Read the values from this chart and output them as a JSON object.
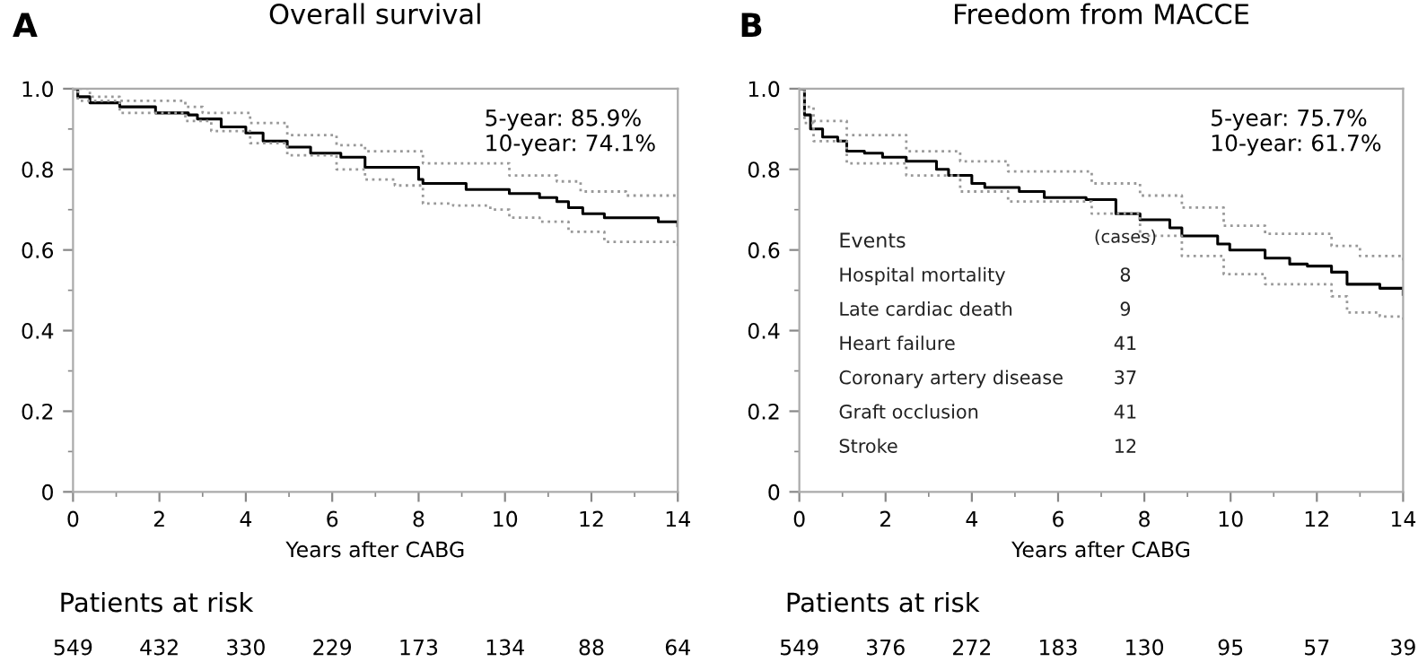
{
  "chart_data": [
    {
      "type": "step",
      "title": "Overall survival",
      "xlabel": "Years after CABG",
      "xlim": [
        0,
        14
      ],
      "ylim": [
        0,
        1.0
      ],
      "xticks": [
        0,
        2,
        4,
        6,
        8,
        10,
        12,
        14,
        {
          "value": 1,
          "label": null
        },
        {
          "value": 3,
          "label": null
        },
        {
          "value": 5,
          "label": null
        },
        {
          "value": 7,
          "label": null
        },
        {
          "value": 9,
          "label": null
        },
        {
          "value": 11,
          "label": null
        },
        {
          "value": 13,
          "label": null
        }
      ],
      "yticks": [
        0,
        0.2,
        0.4,
        0.6,
        0.8,
        {
          "value": 1.0,
          "label": "1.0"
        },
        {
          "value": 0.1,
          "label": null
        },
        {
          "value": 0.3,
          "label": null
        },
        {
          "value": 0.5,
          "label": null
        },
        {
          "value": 0.7,
          "label": null
        },
        {
          "value": 0.9,
          "label": null
        }
      ],
      "grid": false,
      "legend": false,
      "series": [
        {
          "color": "#000000",
          "line_style": "solid",
          "x": [
            0,
            0.11,
            0.39,
            1.08,
            1.91,
            2.67,
            2.88,
            3.43,
            4.0,
            4.4,
            4.96,
            5.5,
            6.2,
            6.76,
            7.45,
            8.0,
            8.1,
            8.7,
            9.1,
            9.66,
            10.1,
            10.8,
            11.2,
            11.47,
            11.8,
            12.3,
            13.4,
            13.55,
            14
          ],
          "values": [
            1.0,
            0.98,
            0.965,
            0.955,
            0.94,
            0.935,
            0.925,
            0.905,
            0.89,
            0.87,
            0.855,
            0.84,
            0.83,
            0.805,
            0.805,
            0.775,
            0.765,
            0.765,
            0.75,
            0.75,
            0.74,
            0.73,
            0.72,
            0.705,
            0.69,
            0.68,
            0.68,
            0.67,
            0.66
          ]
        },
        {
          "color": "#999999",
          "line_style": "dotted",
          "x": [
            0,
            0.39,
            1.08,
            2.6,
            3.0,
            4.1,
            4.96,
            6.1,
            6.76,
            7.6,
            8.1,
            8.8,
            10.1,
            11.2,
            11.75,
            12.8,
            14
          ],
          "values": [
            1.0,
            0.98,
            0.97,
            0.955,
            0.94,
            0.915,
            0.885,
            0.86,
            0.845,
            0.845,
            0.815,
            0.815,
            0.785,
            0.77,
            0.745,
            0.735,
            0.73
          ]
        },
        {
          "color": "#999999",
          "line_style": "dotted",
          "x": [
            0,
            0.11,
            1.08,
            2.6,
            3.2,
            4.1,
            4.96,
            6.1,
            6.76,
            7.45,
            8.1,
            8.8,
            9.66,
            10.1,
            10.8,
            11.47,
            12.3,
            14
          ],
          "values": [
            1.0,
            0.97,
            0.94,
            0.92,
            0.895,
            0.865,
            0.835,
            0.8,
            0.775,
            0.76,
            0.715,
            0.71,
            0.7,
            0.68,
            0.67,
            0.645,
            0.62,
            0.6
          ]
        }
      ],
      "annotations": [
        "A",
        "5-year: 85.9%\n10-year: 74.1%",
        "Patients at risk",
        "549",
        "432",
        "330",
        "229",
        "173",
        "134",
        "88",
        "64"
      ]
    },
    {
      "type": "step",
      "title": "Freedom from MACCE",
      "xlabel": "Years after CABG",
      "xlim": [
        0,
        14
      ],
      "ylim": [
        0,
        1.0
      ],
      "xticks": [
        0,
        2,
        4,
        6,
        8,
        10,
        12,
        14,
        {
          "value": 1,
          "label": null
        },
        {
          "value": 3,
          "label": null
        },
        {
          "value": 5,
          "label": null
        },
        {
          "value": 7,
          "label": null
        },
        {
          "value": 9,
          "label": null
        },
        {
          "value": 11,
          "label": null
        },
        {
          "value": 13,
          "label": null
        }
      ],
      "yticks": [
        0,
        0.2,
        0.4,
        0.6,
        0.8,
        {
          "value": 1.0,
          "label": "1.0"
        },
        {
          "value": 0.1,
          "label": null
        },
        {
          "value": 0.3,
          "label": null
        },
        {
          "value": 0.5,
          "label": null
        },
        {
          "value": 0.7,
          "label": null
        },
        {
          "value": 0.9,
          "label": null
        }
      ],
      "grid": false,
      "legend": false,
      "series": [
        {
          "color": "#000000",
          "line_style": "solid",
          "x": [
            0,
            0.12,
            0.26,
            0.54,
            0.89,
            1.1,
            1.51,
            1.93,
            2.48,
            3.18,
            3.46,
            4.0,
            4.3,
            5.1,
            5.68,
            6.65,
            7.34,
            7.9,
            8.59,
            8.87,
            9.42,
            9.7,
            9.98,
            10.8,
            11.37,
            11.78,
            12.34,
            12.7,
            13.46,
            14
          ],
          "values": [
            1.0,
            0.935,
            0.9,
            0.88,
            0.87,
            0.845,
            0.84,
            0.83,
            0.82,
            0.8,
            0.785,
            0.765,
            0.755,
            0.745,
            0.73,
            0.725,
            0.69,
            0.675,
            0.655,
            0.635,
            0.635,
            0.615,
            0.6,
            0.58,
            0.565,
            0.56,
            0.545,
            0.515,
            0.505,
            0.49
          ]
        },
        {
          "color": "#999999",
          "line_style": "dotted",
          "x": [
            0,
            0.12,
            0.33,
            1.1,
            2.48,
            3.73,
            4.84,
            6.78,
            7.9,
            8.87,
            9.84,
            10.8,
            12.34,
            13.0,
            14
          ],
          "values": [
            1.0,
            0.955,
            0.92,
            0.885,
            0.845,
            0.82,
            0.795,
            0.765,
            0.735,
            0.705,
            0.66,
            0.64,
            0.61,
            0.585,
            0.57
          ]
        },
        {
          "color": "#999999",
          "line_style": "dotted",
          "x": [
            0,
            0.12,
            0.33,
            1.1,
            2.48,
            3.73,
            4.84,
            6.78,
            7.9,
            8.87,
            9.84,
            10.8,
            12.34,
            12.7,
            13.46,
            14
          ],
          "values": [
            1.0,
            0.915,
            0.87,
            0.815,
            0.785,
            0.745,
            0.72,
            0.69,
            0.635,
            0.585,
            0.54,
            0.515,
            0.485,
            0.445,
            0.435,
            0.42
          ]
        }
      ],
      "annotations": [
        "B",
        "5-year: 75.7%\n10-year: 61.7%",
        "Events",
        "(cases)",
        "Hospital mortality",
        "8",
        "Late cardiac death",
        "9",
        "Heart failure",
        "41",
        "Coronary artery disease",
        "37",
        "Graft occlusion",
        "41",
        "Stroke",
        "12",
        "Patients at risk",
        "549",
        "376",
        "272",
        "183",
        "130",
        "95",
        "57",
        "39"
      ]
    }
  ]
}
